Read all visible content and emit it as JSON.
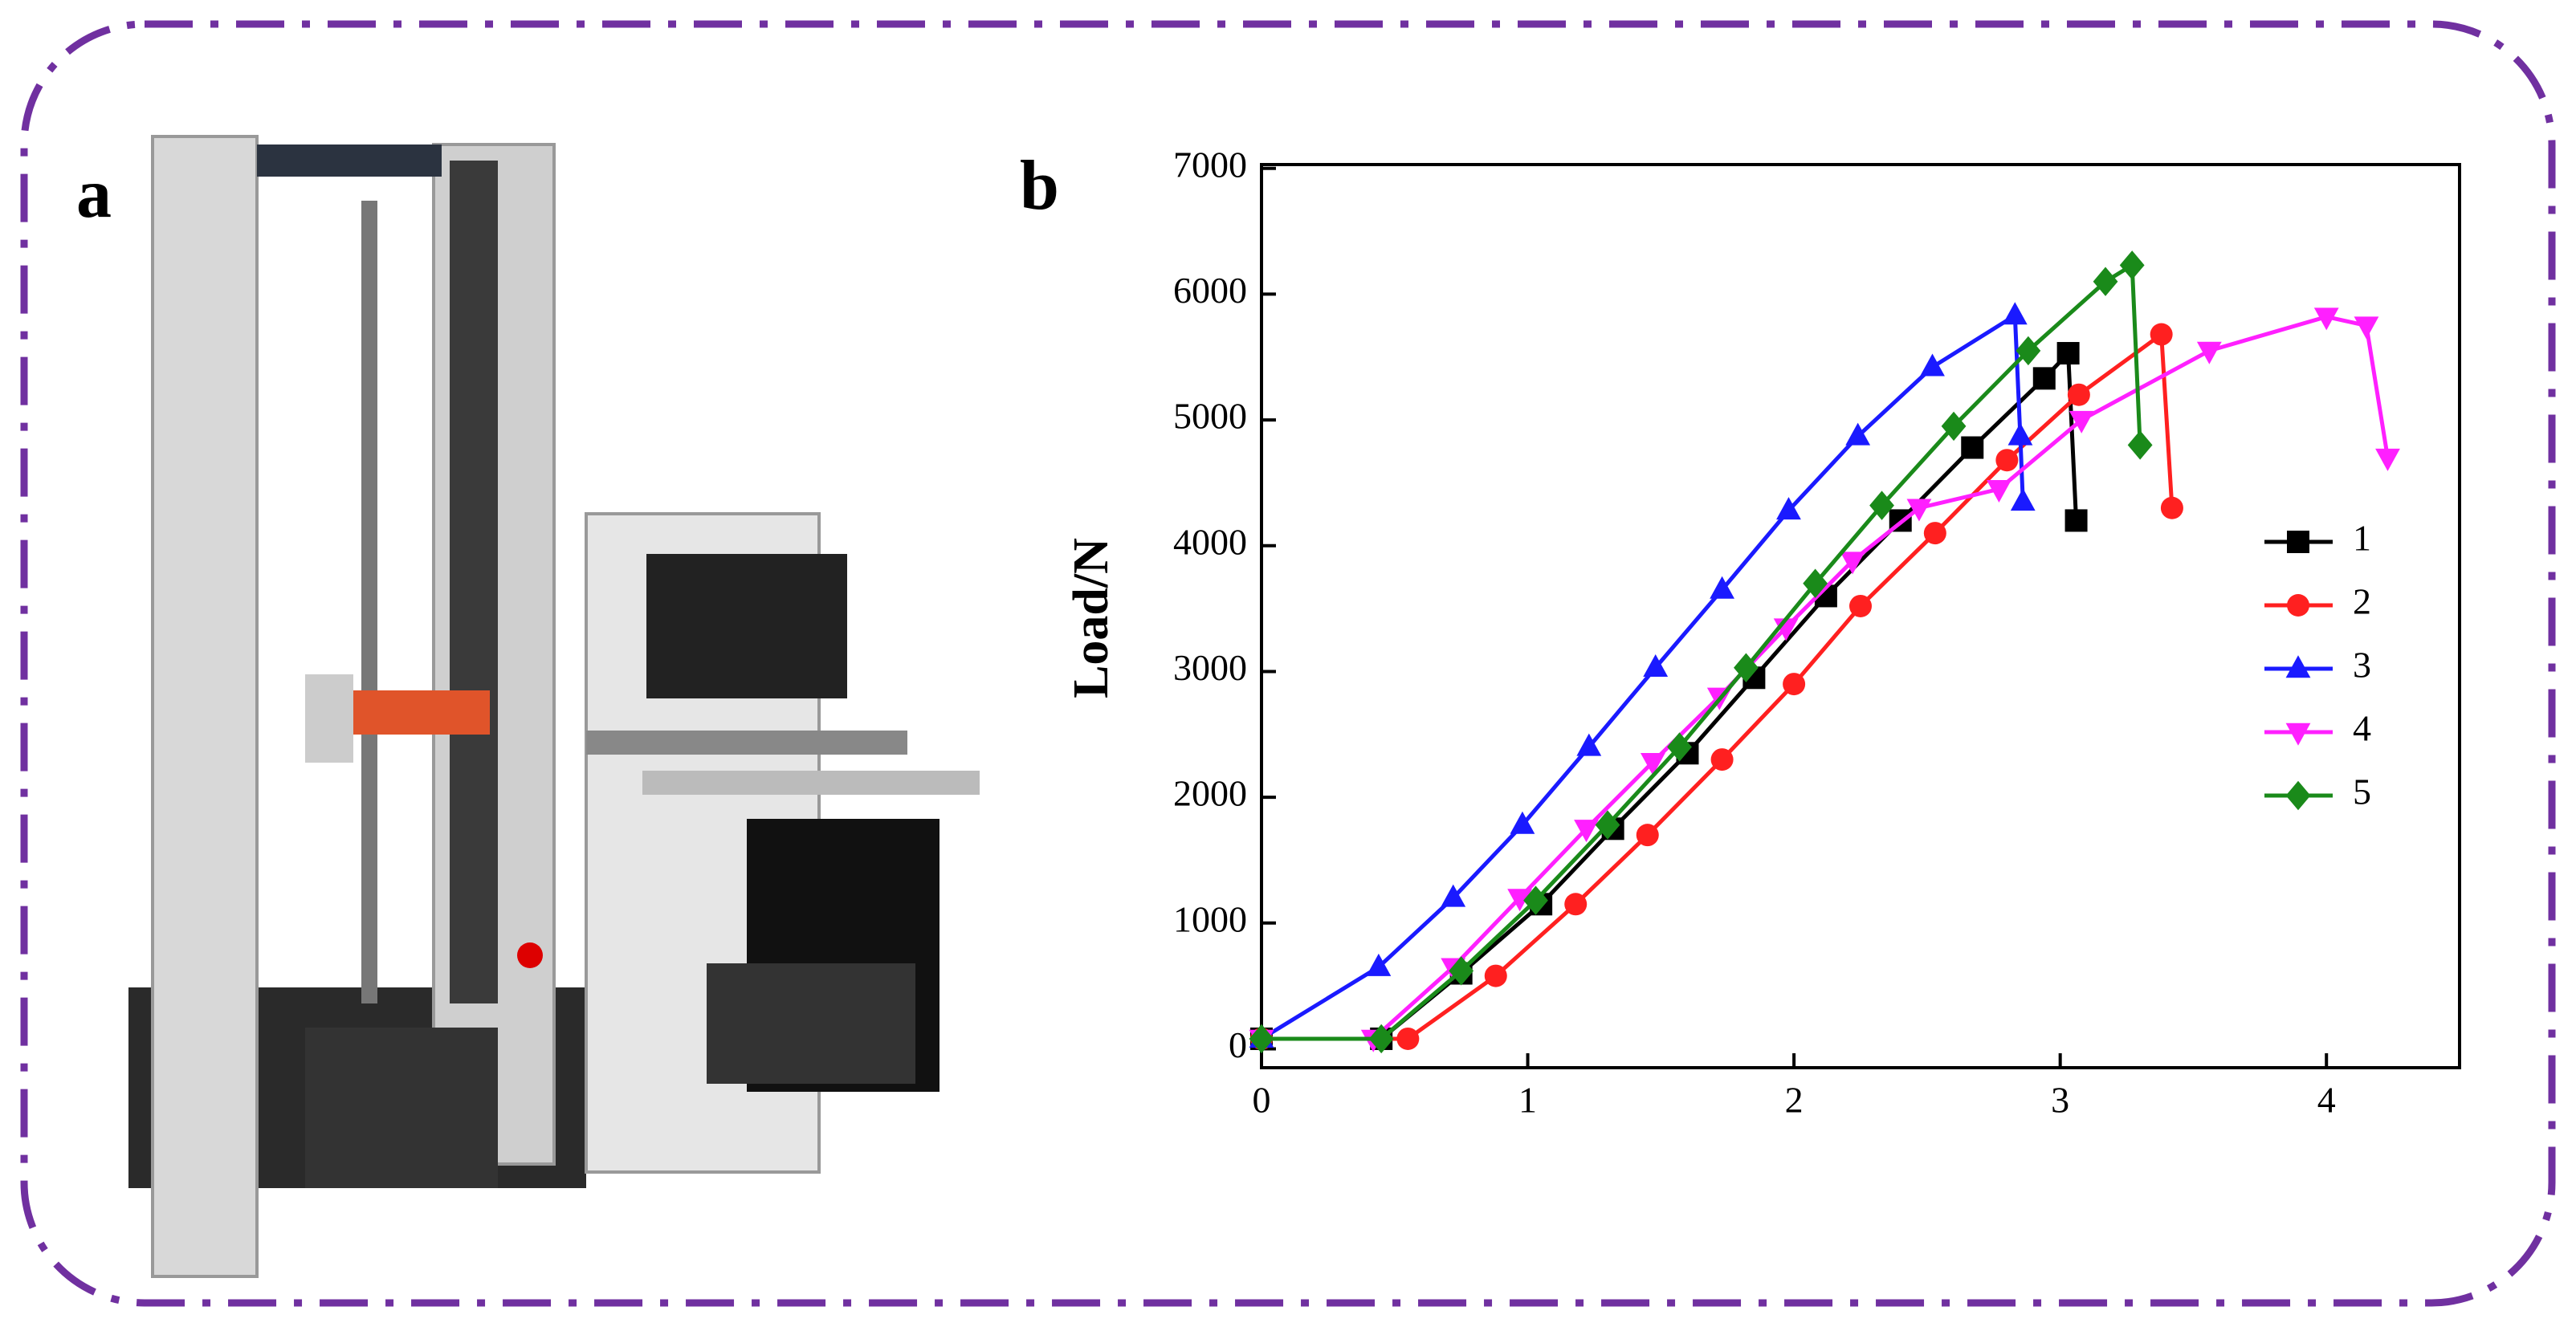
{
  "panel_labels": [
    "a",
    "b"
  ],
  "chart_data": {
    "type": "line",
    "ylabel": "Load/N",
    "xlim": [
      0,
      4.5
    ],
    "xticks": [
      0,
      1,
      2,
      3,
      4
    ],
    "ylim": [
      -150,
      7030
    ],
    "yticks": [
      0,
      1000,
      2000,
      3000,
      4000,
      5000,
      6000,
      7000
    ],
    "series": [
      {
        "name": "1",
        "color": "#000000",
        "marker": "square",
        "x": [
          0,
          0.45,
          0.75,
          1.05,
          1.32,
          1.6,
          1.85,
          2.12,
          2.4,
          2.67,
          2.94,
          3.03,
          3.06
        ],
        "values": [
          80,
          80,
          600,
          1150,
          1750,
          2350,
          2950,
          3600,
          4200,
          4780,
          5330,
          5530,
          4200
        ]
      },
      {
        "name": "2",
        "color": "#ff2020",
        "marker": "circle",
        "x": [
          0,
          0.55,
          0.88,
          1.18,
          1.45,
          1.73,
          2,
          2.25,
          2.53,
          2.8,
          3.07,
          3.38,
          3.42
        ],
        "values": [
          80,
          80,
          580,
          1150,
          1700,
          2300,
          2900,
          3520,
          4100,
          4680,
          5200,
          5680,
          4300
        ]
      },
      {
        "name": "3",
        "color": "#1a1aff",
        "marker": "triangle-up",
        "x": [
          0,
          0.44,
          0.72,
          0.98,
          1.23,
          1.48,
          1.73,
          1.98,
          2.24,
          2.52,
          2.83,
          2.85,
          2.86
        ],
        "values": [
          80,
          650,
          1200,
          1780,
          2400,
          3030,
          3650,
          4280,
          4870,
          5420,
          5830,
          4870,
          4350
        ]
      },
      {
        "name": "4",
        "color": "#ff20ff",
        "marker": "triangle-down",
        "x": [
          0,
          0.42,
          0.72,
          0.97,
          1.22,
          1.47,
          1.72,
          1.97,
          2.22,
          2.47,
          2.77,
          3.08,
          3.56,
          4.0,
          4.15,
          4.23
        ],
        "values": [
          80,
          80,
          650,
          1200,
          1750,
          2280,
          2800,
          3350,
          3880,
          4300,
          4450,
          5000,
          5550,
          5820,
          5750,
          4700
        ]
      },
      {
        "name": "5",
        "color": "#1a8a1a",
        "marker": "diamond",
        "x": [
          0,
          0.45,
          0.75,
          1.03,
          1.3,
          1.57,
          1.82,
          2.08,
          2.33,
          2.6,
          2.88,
          3.17,
          3.27,
          3.3
        ],
        "values": [
          80,
          80,
          620,
          1180,
          1780,
          2400,
          3030,
          3700,
          4320,
          4950,
          5550,
          6100,
          6230,
          4800
        ]
      }
    ]
  }
}
